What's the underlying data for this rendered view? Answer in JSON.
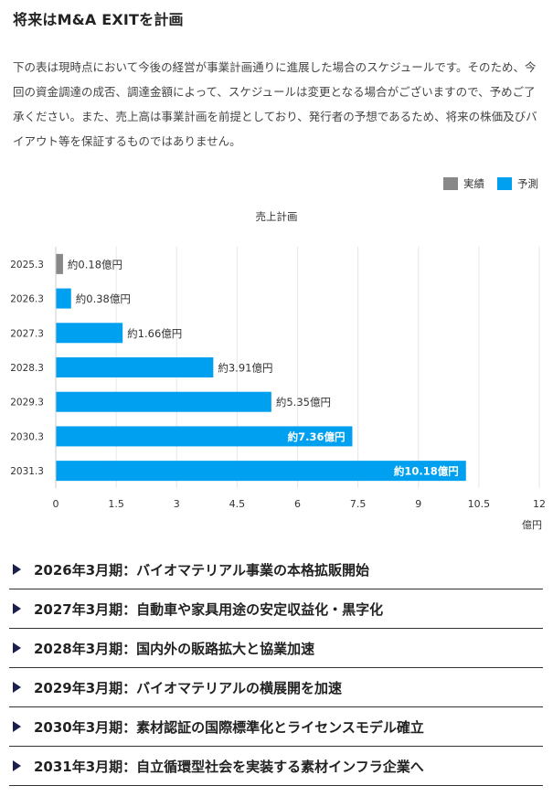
{
  "title": "将来はM&A EXITを計画",
  "intro": "下の表は現時点において今後の経営が事業計画通りに進展した場合のスケジュールです。そのため、今回の資金調達の成否、調達金額によって、スケジュールは変更となる場合がございますので、予めご了承ください。また、売上高は事業計画を前提としており、発行者の予想であるため、将来の株価及びバイアウト等を保証するものではありません。",
  "legend": [
    {
      "label": "実績",
      "color": "#888888"
    },
    {
      "label": "予測",
      "color": "#00a0f0"
    }
  ],
  "chart_data": {
    "type": "bar",
    "orientation": "horizontal",
    "title": "売上計画",
    "unit": "億円",
    "categories": [
      "2025.3",
      "2026.3",
      "2027.3",
      "2028.3",
      "2029.3",
      "2030.3",
      "2031.3"
    ],
    "values": [
      0.18,
      0.38,
      1.66,
      3.91,
      5.35,
      7.36,
      10.18
    ],
    "data_labels": [
      "約0.18億円",
      "約0.38億円",
      "約1.66億円",
      "約3.91億円",
      "約5.35億円",
      "約7.36億円",
      "約10.18億円"
    ],
    "series_type": [
      "実績",
      "予測",
      "予測",
      "予測",
      "予測",
      "予測",
      "予測"
    ],
    "xlim": [
      0,
      12
    ],
    "xticks": [
      "0",
      "1.5",
      "3",
      "4.5",
      "6",
      "7.5",
      "9",
      "10.5",
      "12"
    ],
    "grid": true,
    "legend_position": "top-right"
  },
  "milestones": [
    "2026年3月期：バイオマテリアル事業の本格拡販開始",
    "2027年3月期：自動車や家具用途の安定収益化・黒字化",
    "2028年3月期：国内外の販路拡大と協業加速",
    "2029年3月期：バイオマテリアルの横展開を加速",
    "2030年3月期：素材認証の国際標準化とライセンスモデル確立",
    "2031年3月期：自立循環型社会を実装する素材インフラ企業へ"
  ]
}
